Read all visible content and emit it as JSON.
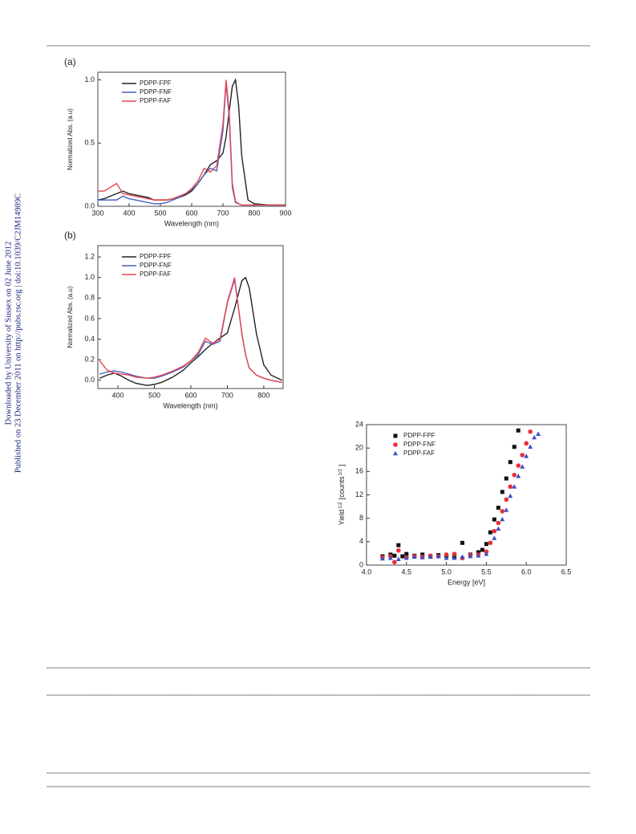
{
  "sidebar": [
    "Downloaded by University of Sussex on 02 June 2012",
    "Published on 23 December 2011 on http://pubs.rsc.org | doi:10.1039/C2JM14989C"
  ],
  "chart_data": [
    {
      "type": "line",
      "label": "(a)",
      "xlabel": "Wavelength (nm)",
      "ylabel": "Normalized Abs. (a.u)",
      "x": [
        300,
        320,
        340,
        360,
        380,
        400,
        420,
        440,
        460,
        480,
        500,
        520,
        540,
        560,
        580,
        600,
        620,
        640,
        660,
        680,
        700,
        710,
        720,
        730,
        740,
        750,
        760,
        780,
        800,
        850,
        900
      ],
      "series": [
        {
          "name": "PDPP-FPF",
          "color": "#222222",
          "values": [
            0.05,
            0.06,
            0.08,
            0.1,
            0.12,
            0.1,
            0.09,
            0.08,
            0.07,
            0.05,
            0.05,
            0.05,
            0.06,
            0.07,
            0.09,
            0.12,
            0.18,
            0.25,
            0.33,
            0.36,
            0.42,
            0.55,
            0.75,
            0.95,
            1.0,
            0.8,
            0.4,
            0.05,
            0.02,
            0.01,
            0.01
          ]
        },
        {
          "name": "PDPP-FNF",
          "color": "#4a5fc1",
          "values": [
            0.05,
            0.05,
            0.05,
            0.05,
            0.08,
            0.06,
            0.05,
            0.04,
            0.03,
            0.02,
            0.02,
            0.03,
            0.05,
            0.07,
            0.1,
            0.13,
            0.18,
            0.25,
            0.3,
            0.28,
            0.6,
            0.98,
            0.7,
            0.15,
            0.03,
            0.02,
            0.01,
            0.01,
            0.01,
            0.01,
            0.01
          ]
        },
        {
          "name": "PDPP-FAF",
          "color": "#e8474f",
          "values": [
            0.12,
            0.12,
            0.15,
            0.18,
            0.1,
            0.09,
            0.08,
            0.07,
            0.06,
            0.05,
            0.05,
            0.05,
            0.06,
            0.08,
            0.1,
            0.14,
            0.2,
            0.3,
            0.27,
            0.32,
            0.65,
            1.0,
            0.75,
            0.18,
            0.04,
            0.02,
            0.01,
            0.01,
            0.01,
            0.01,
            0.01
          ]
        }
      ],
      "xlim": [
        300,
        900
      ],
      "xticks": [
        300,
        400,
        500,
        600,
        700,
        800,
        900
      ],
      "ylim": [
        0,
        1.06
      ],
      "yticks": [
        {
          "value": 0,
          "label": "0.0"
        },
        {
          "value": 0.5,
          "label": "0.5"
        },
        {
          "value": 1,
          "label": "1.0"
        }
      ],
      "legend": "upper left"
    },
    {
      "type": "line",
      "label": "(b)",
      "xlabel": "Wavelength (nm)",
      "ylabel": "Normalized Abs. (a.u)",
      "x": [
        350,
        370,
        390,
        410,
        430,
        450,
        480,
        500,
        520,
        550,
        580,
        600,
        620,
        640,
        660,
        680,
        700,
        720,
        740,
        750,
        760,
        780,
        800,
        820,
        850
      ],
      "series": [
        {
          "name": "PDPP-FPF",
          "color": "#222222",
          "values": [
            0.02,
            0.05,
            0.07,
            0.04,
            0.0,
            -0.03,
            -0.05,
            -0.04,
            -0.02,
            0.03,
            0.1,
            0.17,
            0.23,
            0.3,
            0.36,
            0.41,
            0.46,
            0.7,
            0.97,
            1.0,
            0.9,
            0.45,
            0.15,
            0.05,
            0.0
          ]
        },
        {
          "name": "PDPP-FNF",
          "color": "#4a5fc1",
          "values": [
            0.06,
            0.08,
            0.09,
            0.08,
            0.06,
            0.04,
            0.02,
            0.02,
            0.04,
            0.08,
            0.13,
            0.19,
            0.25,
            0.38,
            0.35,
            0.38,
            0.75,
            0.98,
            0.45,
            0.25,
            0.12,
            0.05,
            0.02,
            0.0,
            -0.02
          ]
        },
        {
          "name": "PDPP-FAF",
          "color": "#e8474f",
          "values": [
            0.19,
            0.1,
            0.07,
            0.06,
            0.05,
            0.03,
            0.02,
            0.03,
            0.05,
            0.09,
            0.14,
            0.19,
            0.27,
            0.41,
            0.36,
            0.4,
            0.76,
            1.0,
            0.45,
            0.25,
            0.12,
            0.05,
            0.02,
            0.0,
            -0.02
          ]
        }
      ],
      "xlim": [
        345,
        853
      ],
      "xticks": [
        400,
        500,
        600,
        700,
        800
      ],
      "ylim": [
        -0.08,
        1.31
      ],
      "yticks": [
        {
          "value": 0,
          "label": "0.0"
        },
        {
          "value": 0.2,
          "label": "0.2"
        },
        {
          "value": 0.4,
          "label": "0.4"
        },
        {
          "value": 0.6,
          "label": "0.6"
        },
        {
          "value": 0.8,
          "label": "0.8"
        },
        {
          "value": 1,
          "label": "1.0"
        },
        {
          "value": 1.2,
          "label": "1.2"
        }
      ],
      "legend": "upper left"
    },
    {
      "type": "scatter",
      "xlabel": "Energy [eV]",
      "ylabel_parts": [
        "Yield",
        "1/2",
        "[counts",
        "1/2",
        "]"
      ],
      "series": [
        {
          "name": "PDPP-FPF",
          "color": "#111111",
          "marker": "square",
          "x": [
            4.2,
            4.3,
            4.35,
            4.4,
            4.45,
            4.5,
            4.6,
            4.7,
            4.8,
            4.9,
            5.0,
            5.1,
            5.2,
            5.3,
            5.4,
            5.45,
            5.5,
            5.55,
            5.6,
            5.65,
            5.7,
            5.75,
            5.8,
            5.85,
            5.9
          ],
          "values": [
            1.5,
            1.8,
            1.6,
            3.4,
            1.5,
            1.9,
            1.6,
            1.8,
            1.5,
            1.7,
            1.6,
            1.4,
            3.8,
            1.8,
            2.2,
            2.6,
            3.6,
            5.6,
            7.8,
            9.8,
            12.5,
            14.8,
            17.6,
            20.2,
            23.0
          ]
        },
        {
          "name": "PDPP-FNF",
          "color": "#e8303a",
          "marker": "circle",
          "x": [
            4.2,
            4.3,
            4.35,
            4.4,
            4.5,
            4.6,
            4.7,
            4.8,
            4.9,
            5.0,
            5.1,
            5.2,
            5.3,
            5.4,
            5.5,
            5.55,
            5.6,
            5.65,
            5.7,
            5.75,
            5.8,
            5.85,
            5.9,
            5.95,
            6.0,
            6.05
          ],
          "values": [
            1.3,
            1.5,
            0.5,
            2.5,
            1.3,
            1.5,
            1.4,
            1.6,
            1.5,
            1.8,
            1.9,
            1.2,
            1.7,
            1.8,
            2.3,
            3.8,
            5.8,
            7.2,
            9.2,
            11.2,
            13.4,
            15.4,
            17.0,
            18.8,
            20.8,
            22.8
          ]
        },
        {
          "name": "PDPP-FAF",
          "color": "#3d4fc4",
          "marker": "triangle",
          "x": [
            4.2,
            4.3,
            4.4,
            4.5,
            4.6,
            4.7,
            4.8,
            4.9,
            5.0,
            5.1,
            5.2,
            5.3,
            5.4,
            5.5,
            5.6,
            5.65,
            5.7,
            5.75,
            5.8,
            5.85,
            5.9,
            5.95,
            6.0,
            6.05,
            6.1,
            6.15
          ],
          "values": [
            1.1,
            1.2,
            1.0,
            1.2,
            1.4,
            1.3,
            1.4,
            1.5,
            1.2,
            1.2,
            1.4,
            1.5,
            1.6,
            1.9,
            4.6,
            6.2,
            7.8,
            9.4,
            11.8,
            13.4,
            15.2,
            16.8,
            18.6,
            20.2,
            21.8,
            22.4
          ]
        }
      ],
      "xlim": [
        4.0,
        6.5
      ],
      "xticks": [
        {
          "value": 4,
          "label": "4.0"
        },
        4.5,
        {
          "value": 5,
          "label": "5.0"
        },
        5.5,
        {
          "value": 6,
          "label": "6.0"
        },
        6.5
      ],
      "ylim": [
        0,
        24
      ],
      "yticks": [
        0,
        4,
        8,
        12,
        16,
        20,
        24
      ],
      "legend": "upper left"
    }
  ]
}
